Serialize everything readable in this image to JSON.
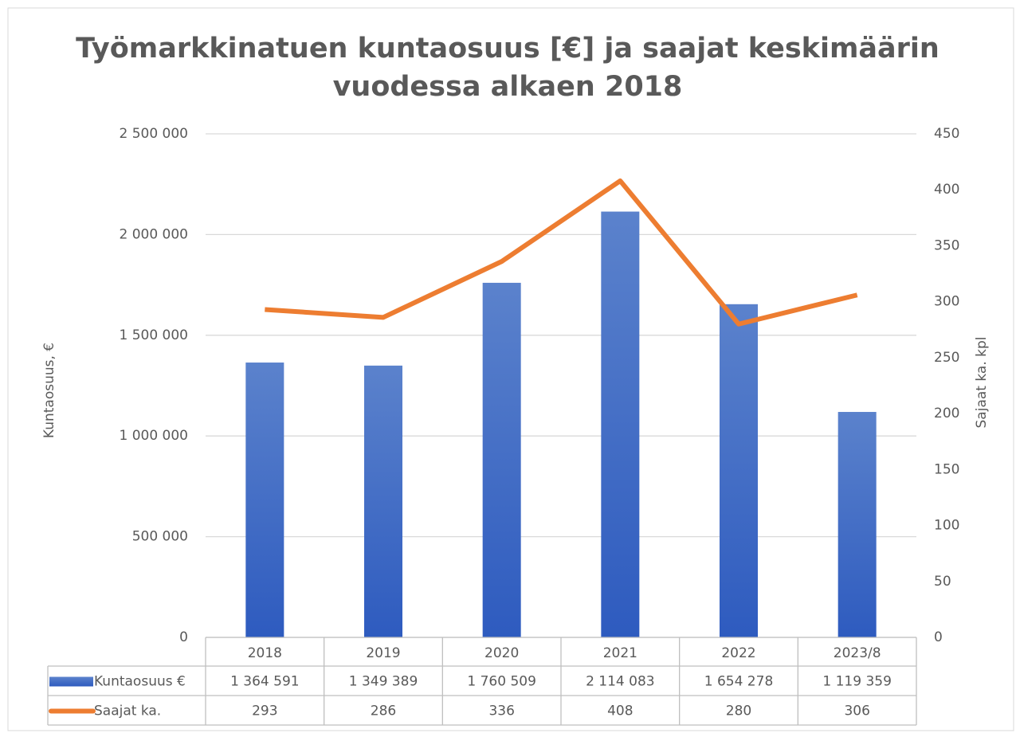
{
  "chart_data": {
    "type": "bar",
    "title": [
      "Työmarkkinatuen kuntaosuus [€] ja saajat keskimäärin",
      "vuodessa alkaen 2018"
    ],
    "ylabel": "Kuntaosuus, €",
    "y2label": "Sajaat ka. kpl",
    "categories": [
      "2018",
      "2019",
      "2020",
      "2021",
      "2022",
      "2023/8"
    ],
    "series": [
      {
        "name": "Kuntaosuus €",
        "type": "bar",
        "color": "#4472c4",
        "values": [
          1364591,
          1349389,
          1760509,
          2114083,
          1654278,
          1119359
        ],
        "value_labels": [
          "1 364 591",
          "1 349 389",
          "1 760 509",
          "2 114 083",
          "1 654 278",
          "1 119 359"
        ]
      },
      {
        "name": "Saajat ka.",
        "type": "line",
        "axis": "y2",
        "color": "#ed7d31",
        "values": [
          293,
          286,
          336,
          408,
          280,
          306
        ]
      }
    ],
    "ylim": [
      0,
      2500000
    ],
    "yticks": [
      0,
      {
        "value": 500000,
        "label": "500 000"
      },
      {
        "value": 1000000,
        "label": "1 000 000"
      },
      {
        "value": 1500000,
        "label": "1 500 000"
      },
      {
        "value": 2000000,
        "label": "2 000 000"
      },
      {
        "value": 2500000,
        "label": "2 500 000"
      }
    ],
    "y2lim": [
      0,
      450
    ],
    "y2ticks": [
      0,
      50,
      100,
      150,
      200,
      250,
      300,
      350,
      400,
      450
    ],
    "grid": true,
    "data_table": true
  }
}
